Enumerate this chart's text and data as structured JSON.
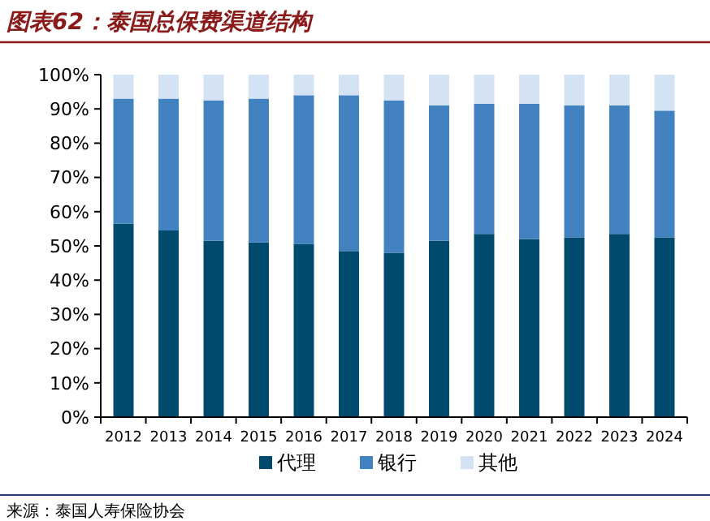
{
  "chart_data": {
    "type": "bar",
    "stacked": true,
    "title": "图表62：泰国总保费渠道结构",
    "categories": [
      "2012",
      "2013",
      "2014",
      "2015",
      "2016",
      "2017",
      "2018",
      "2019",
      "2020",
      "2021",
      "2022",
      "2023",
      "2024"
    ],
    "series": [
      {
        "name": "代理",
        "color": "#004a6e",
        "values": [
          56.5,
          54.5,
          51.5,
          51,
          50.5,
          48.5,
          48,
          51.5,
          53.5,
          52,
          52.5,
          53.5,
          52.5
        ]
      },
      {
        "name": "银行",
        "color": "#4382c0",
        "values": [
          36.5,
          38.5,
          41,
          42,
          43.5,
          45.5,
          44.5,
          39.5,
          38,
          39.5,
          38.5,
          37.5,
          37
        ]
      },
      {
        "name": "其他",
        "color": "#d3e3f3",
        "values": [
          7,
          7,
          7.5,
          7,
          6,
          6,
          7.5,
          9,
          8.5,
          8.5,
          9,
          9,
          10.5
        ]
      }
    ],
    "ylim": [
      0,
      100
    ],
    "yticks": [
      {
        "value": 0,
        "label": "0%"
      },
      {
        "value": 10,
        "label": "10%"
      },
      {
        "value": 20,
        "label": "20%"
      },
      {
        "value": 30,
        "label": "30%"
      },
      {
        "value": 40,
        "label": "40%"
      },
      {
        "value": 50,
        "label": "50%"
      },
      {
        "value": 60,
        "label": "60%"
      },
      {
        "value": 70,
        "label": "70%"
      },
      {
        "value": 80,
        "label": "80%"
      },
      {
        "value": 90,
        "label": "90%"
      },
      {
        "value": 100,
        "label": "100%"
      }
    ],
    "grid": false,
    "legend": "bottom",
    "annotations": [
      "来源：泰国人寿保险协会"
    ]
  }
}
